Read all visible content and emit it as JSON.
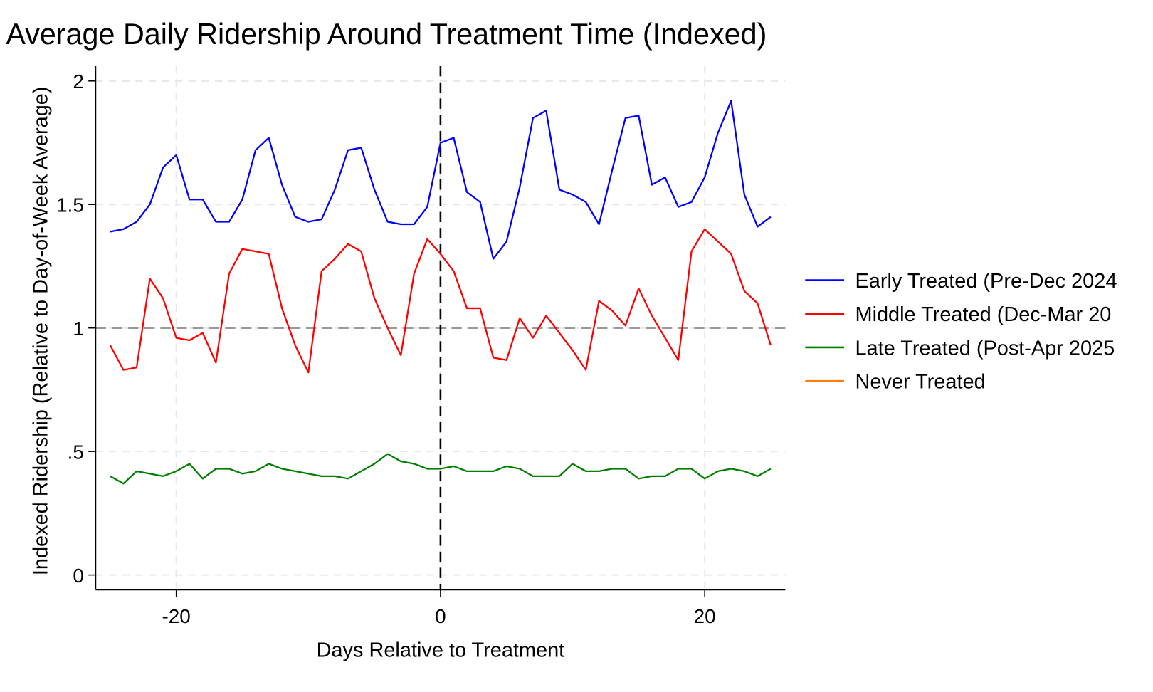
{
  "chart_data": {
    "type": "line",
    "title": "Average Daily Ridership Around Treatment Time (Indexed)",
    "x_label": "Days Relative to Treatment",
    "y_label": "Indexed Ridership (Relative to Day-of-Week Average)",
    "x": [
      -25,
      -24,
      -23,
      -22,
      -21,
      -20,
      -19,
      -18,
      -17,
      -16,
      -15,
      -14,
      -13,
      -12,
      -11,
      -10,
      -9,
      -8,
      -7,
      -6,
      -5,
      -4,
      -3,
      -2,
      -1,
      0,
      1,
      2,
      3,
      4,
      5,
      6,
      7,
      8,
      9,
      10,
      11,
      12,
      13,
      14,
      15,
      16,
      17,
      18,
      19,
      20,
      21,
      22,
      23,
      24,
      25
    ],
    "series": [
      {
        "name": "Early Treated (Pre-Dec 2024",
        "color": "#0000ff",
        "values": [
          1.39,
          1.4,
          1.43,
          1.5,
          1.65,
          1.7,
          1.52,
          1.52,
          1.43,
          1.43,
          1.52,
          1.72,
          1.77,
          1.58,
          1.45,
          1.43,
          1.44,
          1.56,
          1.72,
          1.73,
          1.56,
          1.43,
          1.42,
          1.42,
          1.49,
          1.75,
          1.77,
          1.55,
          1.51,
          1.28,
          1.35,
          1.57,
          1.85,
          1.88,
          1.56,
          1.54,
          1.51,
          1.42,
          1.64,
          1.85,
          1.86,
          1.58,
          1.61,
          1.49,
          1.51,
          1.61,
          1.79,
          1.92,
          1.54,
          1.41,
          1.45
        ]
      },
      {
        "name": "Middle Treated (Dec-Mar 20",
        "color": "#ff0000",
        "values": [
          0.93,
          0.83,
          0.84,
          1.2,
          1.12,
          0.96,
          0.95,
          0.98,
          0.86,
          1.22,
          1.32,
          1.31,
          1.3,
          1.08,
          0.93,
          0.82,
          1.23,
          1.28,
          1.34,
          1.31,
          1.12,
          1.0,
          0.89,
          1.22,
          1.36,
          1.3,
          1.23,
          1.08,
          1.08,
          0.88,
          0.87,
          1.04,
          0.96,
          1.05,
          0.98,
          0.91,
          0.83,
          1.11,
          1.07,
          1.01,
          1.16,
          1.05,
          0.96,
          0.87,
          1.31,
          1.4,
          1.35,
          1.3,
          1.15,
          1.1,
          0.93
        ]
      },
      {
        "name": "Late Treated (Post-Apr 2025",
        "color": "#008000",
        "values": [
          0.4,
          0.37,
          0.42,
          0.41,
          0.4,
          0.42,
          0.45,
          0.39,
          0.43,
          0.43,
          0.41,
          0.42,
          0.45,
          0.43,
          0.42,
          0.41,
          0.4,
          0.4,
          0.39,
          0.42,
          0.45,
          0.49,
          0.46,
          0.45,
          0.43,
          0.43,
          0.44,
          0.42,
          0.42,
          0.42,
          0.44,
          0.43,
          0.4,
          0.4,
          0.4,
          0.45,
          0.42,
          0.42,
          0.43,
          0.43,
          0.39,
          0.4,
          0.4,
          0.43,
          0.43,
          0.39,
          0.42,
          0.43,
          0.42,
          0.4,
          0.43
        ]
      },
      {
        "name": "Never Treated",
        "color": "#ff7f0e",
        "values": [
          null,
          null,
          null,
          null,
          null,
          null,
          null,
          null,
          null,
          null,
          null,
          null,
          null,
          null,
          null,
          null,
          null,
          null,
          null,
          null,
          null,
          null,
          null,
          null,
          null,
          null,
          null,
          null,
          null,
          null,
          null,
          null,
          null,
          null,
          null,
          null,
          null,
          null,
          null,
          null,
          null,
          null,
          null,
          null,
          null,
          null,
          null,
          null,
          null,
          null,
          null
        ]
      }
    ],
    "xlim": [
      -26.1,
      26.1
    ],
    "xticks": [
      -20,
      0,
      20
    ],
    "ylim": [
      -0.06,
      2.06
    ],
    "yticks": [
      0,
      {
        "value": 0.5,
        "label": ".5"
      },
      1,
      1.5,
      2
    ],
    "vline": 0,
    "hline": 1,
    "grid": true,
    "legend": "right"
  }
}
